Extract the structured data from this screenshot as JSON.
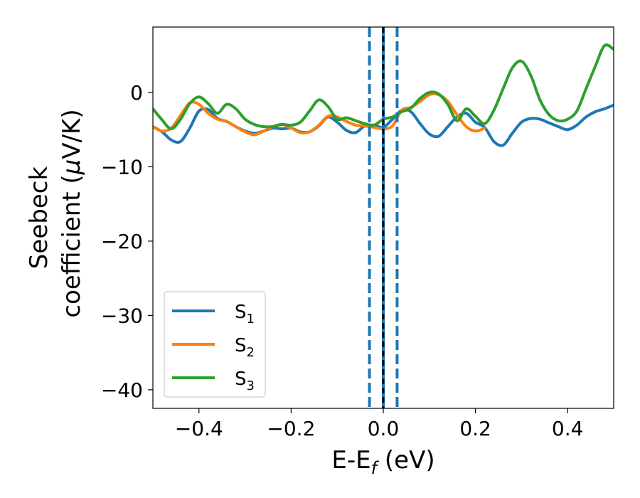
{
  "chart_data": {
    "type": "line",
    "title": "",
    "xlabel": {
      "main": "E-E",
      "sub": "f",
      "unit": " (eV)"
    },
    "ylabel": {
      "line1": "Seebeck",
      "line2_text": "coefficient  (",
      "line2_mu": "μ",
      "line2_unit": "V/K)"
    },
    "xlim": [
      -0.5,
      0.5
    ],
    "ylim": [
      -42.5,
      8.8
    ],
    "x_ticks": [
      -0.4,
      -0.2,
      0.0,
      0.2,
      0.4
    ],
    "x_tick_labels": [
      "−0.4",
      "−0.2",
      "0.0",
      "0.2",
      "0.4"
    ],
    "y_ticks": [
      0,
      -10,
      -20,
      -30,
      -40
    ],
    "y_tick_labels": [
      "0",
      "−10",
      "−20",
      "−30",
      "−40"
    ],
    "grid": false,
    "legend_position": "lower-left",
    "vertical_lines": [
      {
        "x": -0.03,
        "style": "dashed",
        "color": "#1f77b4"
      },
      {
        "x": 0.0,
        "style": "solid",
        "color": "#1f77b4"
      },
      {
        "x": 0.0,
        "style": "dashed",
        "color": "#000000"
      },
      {
        "x": 0.03,
        "style": "dashed",
        "color": "#1f77b4"
      }
    ],
    "series": [
      {
        "name": "S1",
        "label_main": "S",
        "label_sub": "1",
        "color": "#1f77b4",
        "points": [
          [
            -0.5,
            -4.6
          ],
          [
            -0.48,
            -5.3
          ],
          [
            -0.46,
            -6.4
          ],
          [
            -0.44,
            -6.6
          ],
          [
            -0.42,
            -4.8
          ],
          [
            -0.4,
            -2.5
          ],
          [
            -0.38,
            -2.3
          ],
          [
            -0.36,
            -3.5
          ],
          [
            -0.34,
            -3.9
          ],
          [
            -0.32,
            -4.6
          ],
          [
            -0.3,
            -5.2
          ],
          [
            -0.28,
            -5.5
          ],
          [
            -0.26,
            -5.2
          ],
          [
            -0.24,
            -4.8
          ],
          [
            -0.22,
            -4.9
          ],
          [
            -0.2,
            -4.8
          ],
          [
            -0.18,
            -5.3
          ],
          [
            -0.16,
            -5.3
          ],
          [
            -0.14,
            -4.5
          ],
          [
            -0.12,
            -3.3
          ],
          [
            -0.1,
            -4.0
          ],
          [
            -0.08,
            -5.1
          ],
          [
            -0.06,
            -5.4
          ],
          [
            -0.04,
            -4.5
          ],
          [
            -0.02,
            -4.4
          ],
          [
            0.0,
            -4.7
          ],
          [
            0.02,
            -3.6
          ],
          [
            0.04,
            -2.4
          ],
          [
            0.06,
            -2.6
          ],
          [
            0.08,
            -4.2
          ],
          [
            0.1,
            -5.6
          ],
          [
            0.12,
            -5.9
          ],
          [
            0.14,
            -4.6
          ],
          [
            0.16,
            -3.3
          ],
          [
            0.18,
            -2.8
          ],
          [
            0.2,
            -4.0
          ],
          [
            0.22,
            -4.7
          ],
          [
            0.24,
            -6.6
          ],
          [
            0.26,
            -7.1
          ],
          [
            0.28,
            -5.5
          ],
          [
            0.3,
            -4.0
          ],
          [
            0.32,
            -3.5
          ],
          [
            0.34,
            -3.6
          ],
          [
            0.36,
            -4.1
          ],
          [
            0.38,
            -4.6
          ],
          [
            0.4,
            -5.0
          ],
          [
            0.42,
            -4.4
          ],
          [
            0.44,
            -3.3
          ],
          [
            0.46,
            -2.6
          ],
          [
            0.48,
            -2.2
          ],
          [
            0.5,
            -1.7
          ]
        ]
      },
      {
        "name": "S2",
        "label_main": "S",
        "label_sub": "2",
        "color": "#ff7f0e",
        "points": [
          [
            -0.5,
            -4.6
          ],
          [
            -0.48,
            -5.2
          ],
          [
            -0.46,
            -4.8
          ],
          [
            -0.44,
            -3.1
          ],
          [
            -0.42,
            -1.4
          ],
          [
            -0.4,
            -1.6
          ],
          [
            -0.38,
            -2.8
          ],
          [
            -0.36,
            -3.6
          ],
          [
            -0.34,
            -3.9
          ],
          [
            -0.32,
            -4.6
          ],
          [
            -0.3,
            -5.3
          ],
          [
            -0.28,
            -5.7
          ],
          [
            -0.26,
            -5.2
          ],
          [
            -0.24,
            -4.6
          ],
          [
            -0.22,
            -4.3
          ],
          [
            -0.2,
            -4.8
          ],
          [
            -0.18,
            -5.4
          ],
          [
            -0.16,
            -5.3
          ],
          [
            -0.14,
            -4.4
          ],
          [
            -0.12,
            -3.2
          ],
          [
            -0.1,
            -3.3
          ],
          [
            -0.08,
            -3.9
          ],
          [
            -0.06,
            -4.4
          ],
          [
            -0.04,
            -4.5
          ],
          [
            -0.02,
            -4.7
          ],
          [
            0.0,
            -4.9
          ],
          [
            0.02,
            -4.5
          ],
          [
            0.04,
            -2.4
          ],
          [
            0.06,
            -2.0
          ],
          [
            0.08,
            -1.2
          ],
          [
            0.1,
            -0.3
          ],
          [
            0.12,
            -0.3
          ],
          [
            0.14,
            -1.2
          ],
          [
            0.16,
            -3.0
          ],
          [
            0.18,
            -4.6
          ],
          [
            0.2,
            -5.2
          ],
          [
            0.22,
            -4.8
          ]
        ]
      },
      {
        "name": "S3",
        "label_main": "S",
        "label_sub": "3",
        "color": "#2ca02c",
        "points": [
          [
            -0.5,
            -2.2
          ],
          [
            -0.48,
            -3.7
          ],
          [
            -0.46,
            -4.9
          ],
          [
            -0.44,
            -3.6
          ],
          [
            -0.42,
            -1.5
          ],
          [
            -0.4,
            -0.6
          ],
          [
            -0.38,
            -1.5
          ],
          [
            -0.36,
            -2.8
          ],
          [
            -0.34,
            -1.6
          ],
          [
            -0.32,
            -2.2
          ],
          [
            -0.3,
            -3.6
          ],
          [
            -0.28,
            -4.3
          ],
          [
            -0.26,
            -4.6
          ],
          [
            -0.24,
            -4.6
          ],
          [
            -0.22,
            -4.3
          ],
          [
            -0.2,
            -4.4
          ],
          [
            -0.18,
            -4.0
          ],
          [
            -0.16,
            -2.5
          ],
          [
            -0.14,
            -1.0
          ],
          [
            -0.12,
            -1.9
          ],
          [
            -0.1,
            -3.6
          ],
          [
            -0.08,
            -3.4
          ],
          [
            -0.06,
            -3.8
          ],
          [
            -0.04,
            -4.2
          ],
          [
            -0.02,
            -4.4
          ],
          [
            0.0,
            -3.6
          ],
          [
            0.02,
            -3.3
          ],
          [
            0.04,
            -2.6
          ],
          [
            0.06,
            -2.1
          ],
          [
            0.08,
            -0.8
          ],
          [
            0.1,
            0.0
          ],
          [
            0.12,
            -0.2
          ],
          [
            0.14,
            -1.6
          ],
          [
            0.16,
            -3.8
          ],
          [
            0.18,
            -2.2
          ],
          [
            0.2,
            -3.2
          ],
          [
            0.22,
            -4.2
          ],
          [
            0.24,
            -2.4
          ],
          [
            0.26,
            0.5
          ],
          [
            0.28,
            3.3
          ],
          [
            0.3,
            4.2
          ],
          [
            0.32,
            2.3
          ],
          [
            0.34,
            -1.0
          ],
          [
            0.36,
            -3.0
          ],
          [
            0.38,
            -3.8
          ],
          [
            0.4,
            -3.6
          ],
          [
            0.42,
            -2.5
          ],
          [
            0.44,
            0.5
          ],
          [
            0.46,
            3.5
          ],
          [
            0.48,
            6.3
          ],
          [
            0.5,
            5.8
          ]
        ]
      }
    ]
  }
}
